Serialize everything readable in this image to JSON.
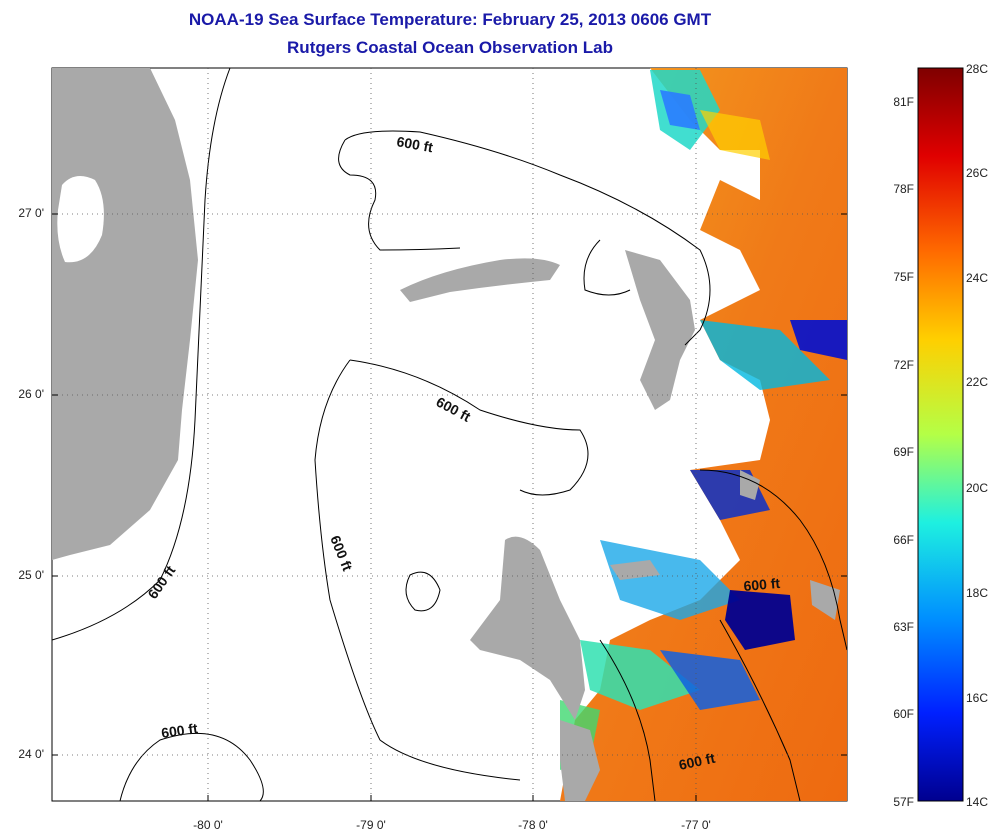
{
  "title": "NOAA-19 Sea Surface Temperature:  February 25, 2013 0606 GMT",
  "subtitle": "Rutgers Coastal Ocean Observation Lab",
  "map": {
    "lat_labels": [
      {
        "v": 27,
        "text": "27 0'"
      },
      {
        "v": 26,
        "text": "26 0'"
      },
      {
        "v": 25,
        "text": "25 0'"
      },
      {
        "v": 24,
        "text": "24 0'"
      }
    ],
    "lon_labels": [
      {
        "v": -80,
        "text": "-80 0'"
      },
      {
        "v": -79,
        "text": "-79 0'"
      },
      {
        "v": -78,
        "text": "-78 0'"
      },
      {
        "v": -77,
        "text": "-77 0'"
      }
    ],
    "contour_label": "600 ft",
    "colors": {
      "land": "#a9a9a9",
      "cloud": "#ffffff",
      "contour": "#000000",
      "grid": "#666666"
    }
  },
  "colorbar": {
    "fahrenheit": [
      "81F",
      "78F",
      "75F",
      "72F",
      "69F",
      "66F",
      "63F",
      "60F",
      "57F"
    ],
    "celsius": [
      "28C",
      "26C",
      "24C",
      "22C",
      "20C",
      "18C",
      "16C",
      "14C"
    ],
    "colors": [
      "#7f0000",
      "#e00000",
      "#ff6a00",
      "#ffcf00",
      "#b4ff46",
      "#1ef0e0",
      "#0090ff",
      "#0020ff",
      "#00008f"
    ]
  }
}
